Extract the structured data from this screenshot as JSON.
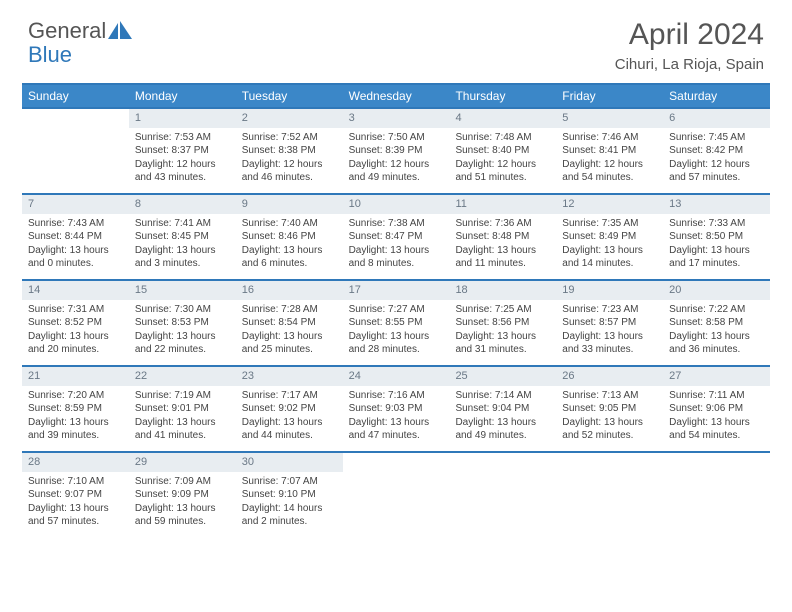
{
  "brand": "General",
  "brandColorWord": "Blue",
  "title": "April 2024",
  "location": "Cihuri, La Rioja, Spain",
  "colors": {
    "headerBg": "#3b87c8",
    "border": "#2f78b9",
    "dayNumBg": "#e8edf1",
    "text": "#555555"
  },
  "weekdays": [
    "Sunday",
    "Monday",
    "Tuesday",
    "Wednesday",
    "Thursday",
    "Friday",
    "Saturday"
  ],
  "weeks": [
    [
      {
        "empty": true
      },
      {
        "num": "1",
        "sr": "Sunrise: 7:53 AM",
        "ss": "Sunset: 8:37 PM",
        "dl": "Daylight: 12 hours and 43 minutes."
      },
      {
        "num": "2",
        "sr": "Sunrise: 7:52 AM",
        "ss": "Sunset: 8:38 PM",
        "dl": "Daylight: 12 hours and 46 minutes."
      },
      {
        "num": "3",
        "sr": "Sunrise: 7:50 AM",
        "ss": "Sunset: 8:39 PM",
        "dl": "Daylight: 12 hours and 49 minutes."
      },
      {
        "num": "4",
        "sr": "Sunrise: 7:48 AM",
        "ss": "Sunset: 8:40 PM",
        "dl": "Daylight: 12 hours and 51 minutes."
      },
      {
        "num": "5",
        "sr": "Sunrise: 7:46 AM",
        "ss": "Sunset: 8:41 PM",
        "dl": "Daylight: 12 hours and 54 minutes."
      },
      {
        "num": "6",
        "sr": "Sunrise: 7:45 AM",
        "ss": "Sunset: 8:42 PM",
        "dl": "Daylight: 12 hours and 57 minutes."
      }
    ],
    [
      {
        "num": "7",
        "sr": "Sunrise: 7:43 AM",
        "ss": "Sunset: 8:44 PM",
        "dl": "Daylight: 13 hours and 0 minutes."
      },
      {
        "num": "8",
        "sr": "Sunrise: 7:41 AM",
        "ss": "Sunset: 8:45 PM",
        "dl": "Daylight: 13 hours and 3 minutes."
      },
      {
        "num": "9",
        "sr": "Sunrise: 7:40 AM",
        "ss": "Sunset: 8:46 PM",
        "dl": "Daylight: 13 hours and 6 minutes."
      },
      {
        "num": "10",
        "sr": "Sunrise: 7:38 AM",
        "ss": "Sunset: 8:47 PM",
        "dl": "Daylight: 13 hours and 8 minutes."
      },
      {
        "num": "11",
        "sr": "Sunrise: 7:36 AM",
        "ss": "Sunset: 8:48 PM",
        "dl": "Daylight: 13 hours and 11 minutes."
      },
      {
        "num": "12",
        "sr": "Sunrise: 7:35 AM",
        "ss": "Sunset: 8:49 PM",
        "dl": "Daylight: 13 hours and 14 minutes."
      },
      {
        "num": "13",
        "sr": "Sunrise: 7:33 AM",
        "ss": "Sunset: 8:50 PM",
        "dl": "Daylight: 13 hours and 17 minutes."
      }
    ],
    [
      {
        "num": "14",
        "sr": "Sunrise: 7:31 AM",
        "ss": "Sunset: 8:52 PM",
        "dl": "Daylight: 13 hours and 20 minutes."
      },
      {
        "num": "15",
        "sr": "Sunrise: 7:30 AM",
        "ss": "Sunset: 8:53 PM",
        "dl": "Daylight: 13 hours and 22 minutes."
      },
      {
        "num": "16",
        "sr": "Sunrise: 7:28 AM",
        "ss": "Sunset: 8:54 PM",
        "dl": "Daylight: 13 hours and 25 minutes."
      },
      {
        "num": "17",
        "sr": "Sunrise: 7:27 AM",
        "ss": "Sunset: 8:55 PM",
        "dl": "Daylight: 13 hours and 28 minutes."
      },
      {
        "num": "18",
        "sr": "Sunrise: 7:25 AM",
        "ss": "Sunset: 8:56 PM",
        "dl": "Daylight: 13 hours and 31 minutes."
      },
      {
        "num": "19",
        "sr": "Sunrise: 7:23 AM",
        "ss": "Sunset: 8:57 PM",
        "dl": "Daylight: 13 hours and 33 minutes."
      },
      {
        "num": "20",
        "sr": "Sunrise: 7:22 AM",
        "ss": "Sunset: 8:58 PM",
        "dl": "Daylight: 13 hours and 36 minutes."
      }
    ],
    [
      {
        "num": "21",
        "sr": "Sunrise: 7:20 AM",
        "ss": "Sunset: 8:59 PM",
        "dl": "Daylight: 13 hours and 39 minutes."
      },
      {
        "num": "22",
        "sr": "Sunrise: 7:19 AM",
        "ss": "Sunset: 9:01 PM",
        "dl": "Daylight: 13 hours and 41 minutes."
      },
      {
        "num": "23",
        "sr": "Sunrise: 7:17 AM",
        "ss": "Sunset: 9:02 PM",
        "dl": "Daylight: 13 hours and 44 minutes."
      },
      {
        "num": "24",
        "sr": "Sunrise: 7:16 AM",
        "ss": "Sunset: 9:03 PM",
        "dl": "Daylight: 13 hours and 47 minutes."
      },
      {
        "num": "25",
        "sr": "Sunrise: 7:14 AM",
        "ss": "Sunset: 9:04 PM",
        "dl": "Daylight: 13 hours and 49 minutes."
      },
      {
        "num": "26",
        "sr": "Sunrise: 7:13 AM",
        "ss": "Sunset: 9:05 PM",
        "dl": "Daylight: 13 hours and 52 minutes."
      },
      {
        "num": "27",
        "sr": "Sunrise: 7:11 AM",
        "ss": "Sunset: 9:06 PM",
        "dl": "Daylight: 13 hours and 54 minutes."
      }
    ],
    [
      {
        "num": "28",
        "sr": "Sunrise: 7:10 AM",
        "ss": "Sunset: 9:07 PM",
        "dl": "Daylight: 13 hours and 57 minutes."
      },
      {
        "num": "29",
        "sr": "Sunrise: 7:09 AM",
        "ss": "Sunset: 9:09 PM",
        "dl": "Daylight: 13 hours and 59 minutes."
      },
      {
        "num": "30",
        "sr": "Sunrise: 7:07 AM",
        "ss": "Sunset: 9:10 PM",
        "dl": "Daylight: 14 hours and 2 minutes."
      },
      {
        "empty": true
      },
      {
        "empty": true
      },
      {
        "empty": true
      },
      {
        "empty": true
      }
    ]
  ]
}
